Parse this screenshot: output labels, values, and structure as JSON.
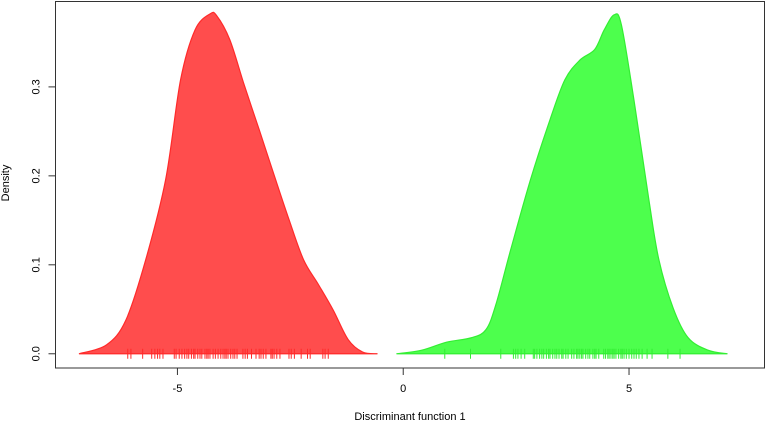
{
  "chart_data": {
    "type": "area",
    "title": "",
    "xlabel": "Discriminant function 1",
    "ylabel": "Density",
    "xlim": [
      -7.7,
      8.0
    ],
    "ylim": [
      -0.016,
      0.396
    ],
    "xticks": [
      -5,
      0,
      5
    ],
    "xtick_labels": [
      "-5",
      "0",
      "5"
    ],
    "yticks": [
      0.0,
      0.1,
      0.2,
      0.3
    ],
    "ytick_labels": [
      "0.0",
      "0.1",
      "0.2",
      "0.3"
    ],
    "grid": false,
    "series": [
      {
        "color": "#ff4d4d",
        "stroke": "#ff2a2a",
        "x": [
          -7.18,
          -6.57,
          -6.14,
          -5.7,
          -5.26,
          -4.93,
          -4.61,
          -4.28,
          -4.13,
          -3.84,
          -3.52,
          -3.19,
          -2.86,
          -2.53,
          -2.21,
          -1.88,
          -1.55,
          -1.22,
          -0.9,
          -0.57
        ],
        "y": [
          0.0,
          0.01,
          0.038,
          0.106,
          0.196,
          0.308,
          0.364,
          0.382,
          0.38,
          0.353,
          0.302,
          0.252,
          0.201,
          0.151,
          0.106,
          0.078,
          0.049,
          0.016,
          0.002,
          0.0
        ],
        "rug": [
          -6.1,
          -6.03,
          -5.77,
          -5.57,
          -5.5,
          -5.44,
          -5.39,
          -5.32,
          -5.07,
          -5.03,
          -4.96,
          -4.9,
          -4.84,
          -4.79,
          -4.75,
          -4.69,
          -4.64,
          -4.61,
          -4.55,
          -4.5,
          -4.46,
          -4.39,
          -4.35,
          -4.32,
          -4.28,
          -4.21,
          -4.16,
          -4.1,
          -4.04,
          -3.99,
          -3.95,
          -3.92,
          -3.88,
          -3.82,
          -3.77,
          -3.73,
          -3.68,
          -3.55,
          -3.5,
          -3.45,
          -3.36,
          -3.26,
          -3.19,
          -3.15,
          -3.1,
          -3.04,
          -2.93,
          -2.9,
          -2.86,
          -2.8,
          -2.73,
          -2.53,
          -2.48,
          -2.41,
          -2.26,
          -2.12,
          -2.06,
          -1.78,
          -1.73,
          -1.66
        ]
      },
      {
        "color": "#4dff4d",
        "stroke": "#33ee33",
        "x": [
          -0.15,
          0.41,
          0.96,
          1.51,
          1.83,
          2.05,
          2.38,
          2.82,
          3.25,
          3.58,
          3.91,
          4.24,
          4.45,
          4.67,
          4.83,
          5.11,
          5.44,
          5.66,
          5.98,
          6.31,
          6.75,
          7.18
        ],
        "y": [
          0.0,
          0.004,
          0.013,
          0.018,
          0.027,
          0.055,
          0.117,
          0.196,
          0.263,
          0.308,
          0.33,
          0.342,
          0.364,
          0.381,
          0.37,
          0.285,
          0.173,
          0.106,
          0.051,
          0.018,
          0.004,
          0.0
        ],
        "rug": [
          0.92,
          1.49,
          2.16,
          2.44,
          2.49,
          2.54,
          2.61,
          2.69,
          2.88,
          2.91,
          2.96,
          3.02,
          3.07,
          3.11,
          3.17,
          3.22,
          3.25,
          3.31,
          3.36,
          3.4,
          3.45,
          3.51,
          3.54,
          3.6,
          3.65,
          3.73,
          3.78,
          3.84,
          3.87,
          3.91,
          3.95,
          3.98,
          4.04,
          4.09,
          4.13,
          4.2,
          4.24,
          4.27,
          4.33,
          4.44,
          4.48,
          4.53,
          4.56,
          4.6,
          4.64,
          4.67,
          4.71,
          4.77,
          4.82,
          4.85,
          4.89,
          4.94,
          5.0,
          5.06,
          5.11,
          5.16,
          5.22,
          5.29,
          5.4,
          5.51,
          5.86,
          6.13
        ]
      }
    ]
  }
}
